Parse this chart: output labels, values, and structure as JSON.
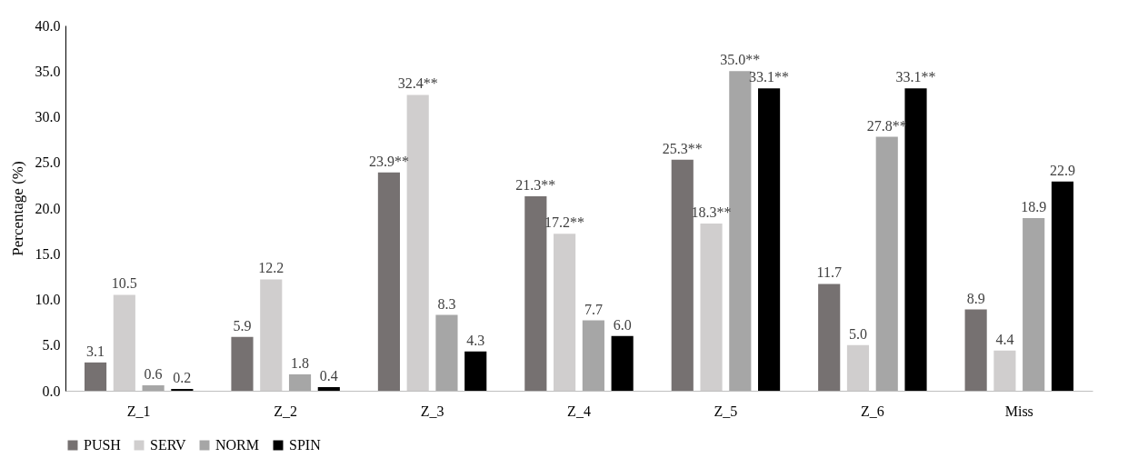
{
  "chart_data": {
    "type": "bar",
    "ylabel": "Percentage (%)",
    "categories": [
      "Z_1",
      "Z_2",
      "Z_3",
      "Z_4",
      "Z_5",
      "Z_6",
      "Miss"
    ],
    "series": [
      {
        "name": "PUSH",
        "color": "#767171",
        "values": [
          3.1,
          5.9,
          23.9,
          21.3,
          25.3,
          11.7,
          8.9
        ],
        "value_labels": [
          "3.1",
          "5.9",
          "23.9**",
          "21.3**",
          "25.3**",
          "11.7",
          "8.9"
        ]
      },
      {
        "name": "SERV",
        "color": "#d0cece",
        "values": [
          10.5,
          12.2,
          32.4,
          17.2,
          18.3,
          5.0,
          4.4
        ],
        "value_labels": [
          "10.5",
          "12.2",
          "32.4**",
          "17.2**",
          "18.3**",
          "5.0",
          "4.4"
        ]
      },
      {
        "name": "NORM",
        "color": "#a6a6a6",
        "values": [
          0.6,
          1.8,
          8.3,
          7.7,
          35.0,
          27.8,
          18.9
        ],
        "value_labels": [
          "0.6",
          "1.8",
          "8.3",
          "7.7",
          "35.0**",
          "27.8**",
          "18.9"
        ]
      },
      {
        "name": "SPIN",
        "color": "#000000",
        "values": [
          0.2,
          0.4,
          4.3,
          6.0,
          33.1,
          33.1,
          22.9
        ],
        "value_labels": [
          "0.2",
          "0.4",
          "4.3",
          "6.0",
          "33.1**",
          "33.1**",
          "22.9"
        ]
      }
    ],
    "ylim": [
      0,
      40
    ],
    "yticks": [
      {
        "value": 0,
        "label": "0.0"
      },
      {
        "value": 5,
        "label": "5.0"
      },
      {
        "value": 10,
        "label": "10.0"
      },
      {
        "value": 15,
        "label": "15.0"
      },
      {
        "value": 20,
        "label": "20.0"
      },
      {
        "value": 25,
        "label": "25.0"
      },
      {
        "value": 30,
        "label": "30.0"
      },
      {
        "value": 35,
        "label": "35.0"
      },
      {
        "value": 40,
        "label": "40.0"
      }
    ],
    "grid": false,
    "legend": "bottom"
  }
}
